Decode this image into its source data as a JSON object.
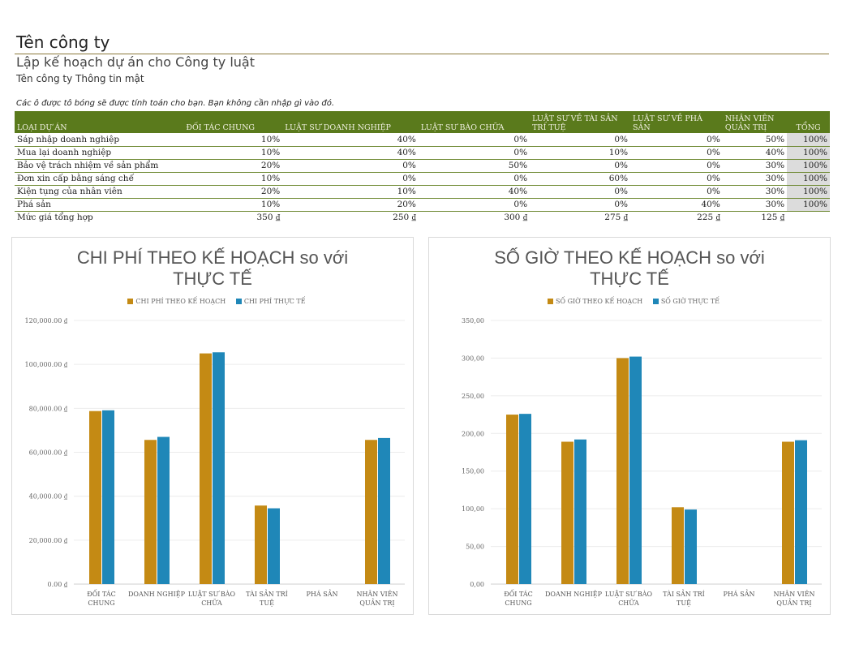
{
  "header": {
    "company": "Tên công ty",
    "subtitle": "Lập kế hoạch dự án cho Công ty luật",
    "confidential": "Tên công ty Thông tin mật",
    "note": "Các ô được tô bóng sẽ được tính toán cho bạn. Bạn không cần nhập gì vào đó."
  },
  "table": {
    "columns": [
      "LOẠI DỰ ÁN",
      "ĐỐI TÁC CHUNG",
      "LUẬT SƯ DOANH NGHIỆP",
      "LUẬT SƯ BÀO CHỮA",
      "LUẬT SƯ VỀ TÀI SẢN TRÍ TUỆ",
      "LUẬT SƯ VỀ PHÁ SẢN",
      "NHÂN VIÊN QUẢN TRỊ",
      "TỔNG"
    ],
    "rows": [
      [
        "Sáp nhập doanh nghiệp",
        "10%",
        "40%",
        "0%",
        "0%",
        "0%",
        "50%",
        "100%"
      ],
      [
        "Mua lại doanh nghiệp",
        "10%",
        "40%",
        "0%",
        "10%",
        "0%",
        "40%",
        "100%"
      ],
      [
        "Bảo vệ trách nhiệm về sản phẩm",
        "20%",
        "0%",
        "50%",
        "0%",
        "0%",
        "30%",
        "100%"
      ],
      [
        "Đơn xin cấp bằng sáng chế",
        "10%",
        "0%",
        "0%",
        "60%",
        "0%",
        "30%",
        "100%"
      ],
      [
        "Kiện tụng của nhân viên",
        "20%",
        "10%",
        "40%",
        "0%",
        "0%",
        "30%",
        "100%"
      ],
      [
        "Phá sản",
        "10%",
        "20%",
        "0%",
        "0%",
        "40%",
        "30%",
        "100%"
      ]
    ],
    "rate_row": [
      "Mức giá tổng hợp",
      "350 ₫",
      "250 ₫",
      "300 ₫",
      "275 ₫",
      "225 ₫",
      "125 ₫"
    ]
  },
  "colors": {
    "planned": "#c48a14",
    "actual": "#1f87b8",
    "header_green": "#5a7a1c",
    "total_shade": "#dcdcdc"
  },
  "chart_data": [
    {
      "type": "bar",
      "title": "CHI PHÍ THEO KẾ HOẠCH so với THỰC TẾ",
      "categories": [
        "ĐỐI TÁC CHUNG",
        "DOANH NGHIỆP",
        "LUẬT SƯ BÀO CHỮA",
        "TÀI SẢN TRÍ TUỆ",
        "PHÁ SẢN",
        "NHÂN VIÊN QUẢN TRỊ"
      ],
      "series": [
        {
          "name": "CHI PHÍ THEO KẾ HOẠCH",
          "values": [
            78750,
            65625,
            105000,
            35750,
            0,
            65625
          ]
        },
        {
          "name": "CHI PHÍ THỰC TẾ",
          "values": [
            79100,
            67000,
            105500,
            34500,
            0,
            66500
          ]
        }
      ],
      "ylim": [
        0,
        120000
      ],
      "yticks": [
        "0.00 ₫",
        "20,000.00 ₫",
        "40,000.00 ₫",
        "60,000.00 ₫",
        "80,000.00 ₫",
        "100,000.00 ₫",
        "120,000.00 ₫"
      ],
      "legend": "top",
      "grid": true
    },
    {
      "type": "bar",
      "title": "SỐ GIỜ THEO KẾ HOẠCH so với THỰC TẾ",
      "categories": [
        "ĐỐI TÁC CHUNG",
        "DOANH NGHIỆP",
        "LUẬT SƯ BÀO CHỮA",
        "TÀI SẢN TRÍ TUỆ",
        "PHÁ SẢN",
        "NHÂN VIÊN QUẢN TRỊ"
      ],
      "series": [
        {
          "name": "SỐ GIỜ THEO KẾ HOẠCH",
          "values": [
            225,
            189,
            300,
            102,
            0,
            189
          ]
        },
        {
          "name": "SỐ GIỜ THỰC TẾ",
          "values": [
            226,
            192,
            302,
            99,
            0,
            191
          ]
        }
      ],
      "ylim": [
        0,
        350
      ],
      "yticks": [
        "0,00",
        "50,00",
        "100,00",
        "150,00",
        "200,00",
        "250,00",
        "300,00",
        "350,00"
      ],
      "legend": "top",
      "grid": true
    }
  ]
}
